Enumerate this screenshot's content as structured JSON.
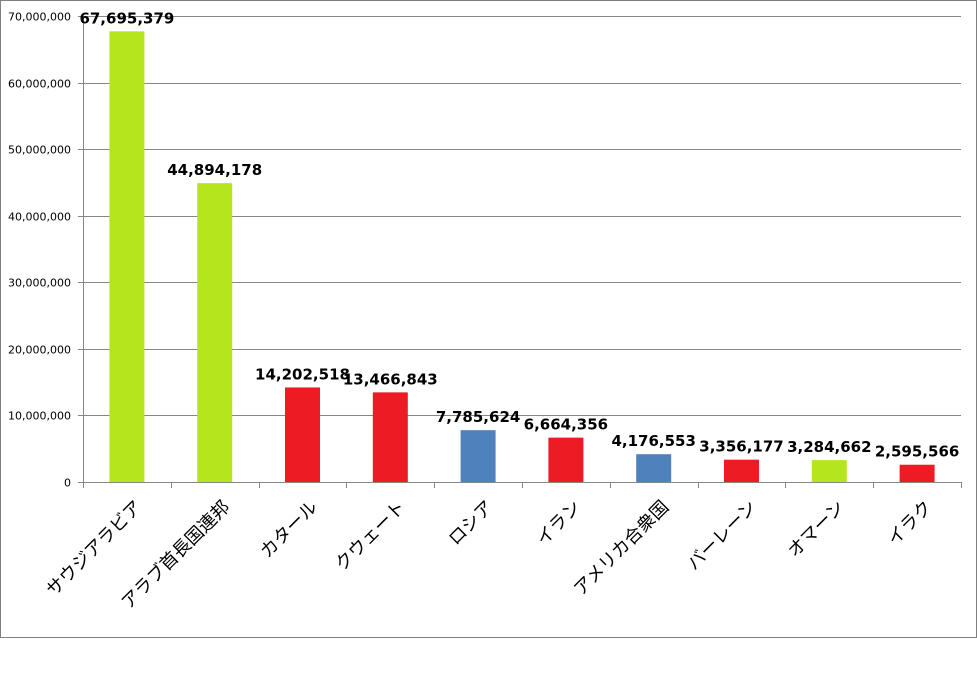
{
  "chart_data": {
    "type": "bar",
    "categories": [
      "サウジアラビア",
      "アラブ首長国連邦",
      "カタール",
      "クウェート",
      "ロシア",
      "イラン",
      "アメリカ合衆国",
      "バーレーン",
      "オマーン",
      "イラク"
    ],
    "values": [
      67695379,
      44894178,
      14202518,
      13466843,
      7785624,
      6664356,
      4176553,
      3356177,
      3284662,
      2595566
    ],
    "value_labels": [
      "67,695,379",
      "44,894,178",
      "14,202,518",
      "13,466,843",
      "7,785,624",
      "6,664,356",
      "4,176,553",
      "3,356,177",
      "3,284,662",
      "2,595,566"
    ],
    "bar_colors": [
      "#b5e61d",
      "#b5e61d",
      "#ed1c24",
      "#ed1c24",
      "#4f81bd",
      "#ed1c24",
      "#4f81bd",
      "#ed1c24",
      "#b5e61d",
      "#ed1c24"
    ],
    "y_ticks": [
      0,
      10000000,
      20000000,
      30000000,
      40000000,
      50000000,
      60000000,
      70000000
    ],
    "y_tick_labels": [
      "0",
      "10,000,000",
      "20,000,000",
      "30,000,000",
      "40,000,000",
      "50,000,000",
      "60,000,000",
      "70,000,000"
    ],
    "ylim": [
      0,
      70000000
    ],
    "title": "",
    "xlabel": "",
    "ylabel": "",
    "grid": true,
    "legend": "none",
    "gridline_color": "#868686",
    "axis_color": "#868686"
  }
}
